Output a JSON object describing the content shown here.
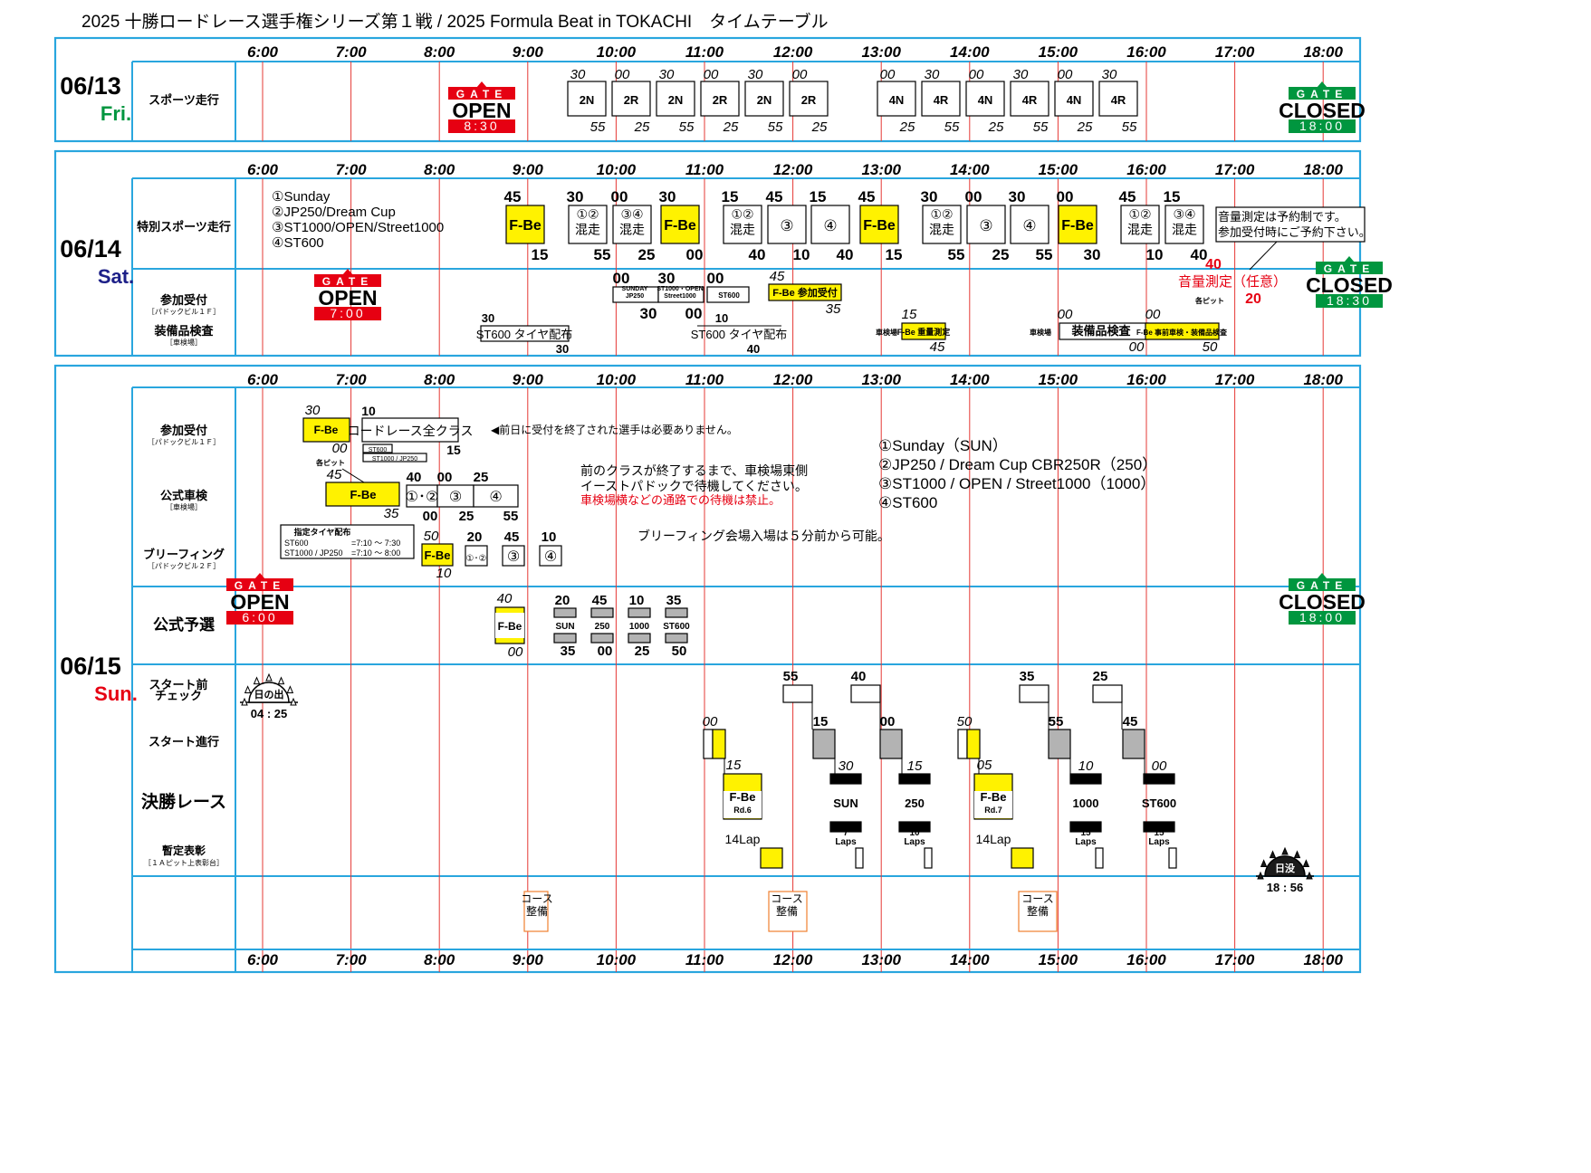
{
  "title": "2025 十勝ロードレース選手権シリーズ第１戦 / 2025 Formula Beat in TOKACHI　タイムテーブル",
  "colors": {
    "frame": "#29a6de",
    "hourline": "#e53935",
    "yellow": "#fff200",
    "gray": "#b3b3b3",
    "gate_open": "#e60012",
    "gate_closed": "#00963f",
    "red_text": "#e60012"
  },
  "hours": [
    "6:00",
    "7:00",
    "8:00",
    "9:00",
    "10:00",
    "11:00",
    "12:00",
    "13:00",
    "14:00",
    "15:00",
    "16:00",
    "17:00",
    "18:00"
  ],
  "gate": {
    "word": "GATE",
    "open": "OPEN",
    "closed": "CLOSED"
  },
  "days": [
    {
      "date": "06/13",
      "dow": "Fri.",
      "dow_color": "#00963f"
    },
    {
      "date": "06/14",
      "dow": "Sat.",
      "dow_color": "#1d2088"
    },
    {
      "date": "06/15",
      "dow": "Sun.",
      "dow_color": "#e60012"
    }
  ],
  "fri": {
    "row_label": "スポーツ走行",
    "gate_open_time": "8:30",
    "gate_closed_time": "18:00",
    "sessions": [
      {
        "label": "2N",
        "start": "30",
        "end": "55"
      },
      {
        "label": "2R",
        "start": "00",
        "end": "25"
      },
      {
        "label": "2N",
        "start": "30",
        "end": "55"
      },
      {
        "label": "2R",
        "start": "00",
        "end": "25"
      },
      {
        "label": "2N",
        "start": "30",
        "end": "55"
      },
      {
        "label": "2R",
        "start": "00",
        "end": "25"
      },
      {
        "label": "4N",
        "start": "00",
        "end": "25"
      },
      {
        "label": "4R",
        "start": "30",
        "end": "55"
      },
      {
        "label": "4N",
        "start": "00",
        "end": "25"
      },
      {
        "label": "4R",
        "start": "30",
        "end": "55"
      },
      {
        "label": "4N",
        "start": "00",
        "end": "25"
      },
      {
        "label": "4R",
        "start": "30",
        "end": "55"
      }
    ]
  },
  "sat": {
    "row1_label": "特別スポーツ走行",
    "row2_label_a": "参加受付",
    "row2_label_a_sub": "［パドックビル１Ｆ］",
    "row2_label_b": "装備品検査",
    "row2_label_b_sub": "［車検場］",
    "legend": [
      "①Sunday",
      "②JP250/Dream Cup",
      "③ST1000/OPEN/Street1000",
      "④ST600"
    ],
    "sessions": [
      {
        "label": "F-Be",
        "start": "45",
        "end": "15"
      },
      {
        "label": "①②\n混走",
        "start": "30",
        "end": "55"
      },
      {
        "label": "③④\n混走",
        "start": "00",
        "end": "25"
      },
      {
        "label": "F-Be",
        "start": "30",
        "end": "00"
      },
      {
        "label": "①②\n混走",
        "start": "15",
        "end": "40"
      },
      {
        "label": "③",
        "start": "45",
        "end": "10"
      },
      {
        "label": "④",
        "start": "15",
        "end": "40"
      },
      {
        "label": "F-Be",
        "start": "45",
        "end": "15"
      },
      {
        "label": "①②\n混走",
        "start": "30",
        "end": "55"
      },
      {
        "label": "③",
        "start": "00",
        "end": "25"
      },
      {
        "label": "④",
        "start": "30",
        "end": "55"
      },
      {
        "label": "F-Be",
        "start": "00",
        "end": "30"
      },
      {
        "label": "①②\n混走",
        "start": "45",
        "end": "10"
      },
      {
        "label": "③④\n混走",
        "start": "15",
        "end": "40"
      }
    ],
    "note1": "音量測定は予約制です。",
    "note2": "参加受付時にご予約下さい。",
    "gate_open_time": "7:00",
    "gate_closed_time": "18:30",
    "reception": [
      {
        "label": "SUNDAY\nJP250",
        "start": "00",
        "end": "30"
      },
      {
        "label": "ST1000・OPEN\nStreet1000",
        "start": "30",
        "end": "00"
      },
      {
        "label": "ST600",
        "start": "00",
        "end": ""
      }
    ],
    "fbe_reception": "F-Be 参加受付",
    "fbe_reception_start": "45",
    "fbe_reception_end": "35",
    "tire1": "ST600 タイヤ配布",
    "tire1_start": "30",
    "tire1_end": "30",
    "tire2": "ST600 タイヤ配布",
    "tire2_start": "10",
    "tire2_end": "40",
    "shakenjo": "車検場",
    "fbe_weight": "F-Be 重量測定",
    "fbe_weight_start": "15",
    "fbe_weight_end": "45",
    "equip_check": "装備品検査",
    "equip_start": "00",
    "equip_end": "00",
    "fbe_pre": "F-Be 事前車検・装備品検査",
    "fbe_pre_start": "00",
    "fbe_pre_end": "50",
    "sound": "音量測定（任意）",
    "sound_start": "40",
    "sound_end": "20",
    "each_pit": "各ピット"
  },
  "sun": {
    "label_reception": "参加受付",
    "label_reception_sub": "［パドックビル１Ｆ］",
    "label_scrutineering": "公式車検",
    "label_scrutineering_sub": "［車検場］",
    "label_briefing": "ブリーフィング",
    "label_briefing_sub": "［パドックビル２Ｆ］",
    "label_qualifying": "公式予選",
    "label_prestart": "スタート前\nチェック",
    "label_start": "スタート進行",
    "label_final": "決勝レース",
    "label_podium": "暫定表彰",
    "label_podium_sub": "［１Ａピット上表彰台］",
    "reception_fbe": "F-Be",
    "reception_fbe_start": "30",
    "reception_fbe_end": "00",
    "reception_all": "ロードレース全クラス",
    "reception_all_start": "10",
    "reception_all_end": "15",
    "reception_sub1": "ST600",
    "reception_sub2": "ST1000 / JP250",
    "reception_note": "◀前日に受付を終了された選手は必要ありません。",
    "each_pit": "各ピット",
    "scrut_fbe": "F-Be",
    "scrut_fbe_start": "45",
    "scrut_fbe_end": "35",
    "scrut_classes": [
      {
        "label": "①･②",
        "start": "40",
        "end": "00"
      },
      {
        "label": "③",
        "start": "00",
        "end": "25"
      },
      {
        "label": "④",
        "start": "25",
        "end": "55"
      }
    ],
    "scrut_note1": "前のクラスが終了するまで、車検場東側",
    "scrut_note2": "イーストパドックで待機してください。",
    "scrut_note3": "車検場横などの通路での待機は禁止。",
    "tire_title": "指定タイヤ配布",
    "tire_line1_a": "ST600",
    "tire_line1_b": "=7:10 ～ 7:30",
    "tire_line2_a": "ST1000 / JP250",
    "tire_line2_b": "=7:10 ～ 8:00",
    "brief_fbe": "F-Be",
    "brief_fbe_start": "50",
    "brief_fbe_end": "10",
    "brief_classes": [
      {
        "label": "①･②",
        "start": "20"
      },
      {
        "label": "③",
        "start": "45"
      },
      {
        "label": "④",
        "start": "10"
      }
    ],
    "brief_note": "ブリーフィング会場入場は５分前から可能。",
    "legend": [
      "①Sunday（SUN）",
      "②JP250 / Dream Cup CBR250R（250）",
      "③ST1000 / OPEN / Street1000（1000）",
      "④ST600"
    ],
    "gate_open_time": "6:00",
    "gate_closed_time": "18:00",
    "qual_fbe": "F-Be",
    "qual_fbe_start": "40",
    "qual_fbe_end": "00",
    "qualifying": [
      {
        "label": "SUN",
        "start": "20",
        "end": "35"
      },
      {
        "label": "250",
        "start": "45",
        "end": "00"
      },
      {
        "label": "1000",
        "start": "10",
        "end": "25"
      },
      {
        "label": "ST600",
        "start": "35",
        "end": "50"
      }
    ],
    "sunrise": "日の出",
    "sunrise_time": "04 : 25",
    "sunset": "日没",
    "sunset_time": "18 : 56",
    "races": [
      {
        "label": "F-Be",
        "sub": "Rd.6",
        "laps": "14Lap",
        "start_prog": "00",
        "race_start": "15"
      },
      {
        "label": "SUN",
        "sub": "",
        "laps": "7\nLaps",
        "pre": "55",
        "start_prog": "15",
        "race_start": "30"
      },
      {
        "label": "250",
        "sub": "",
        "laps": "10\nLaps",
        "pre": "40",
        "start_prog": "00",
        "race_start": "15"
      },
      {
        "label": "F-Be",
        "sub": "Rd.7",
        "laps": "14Lap",
        "start_prog": "50",
        "race_start": "05"
      },
      {
        "label": "1000",
        "sub": "",
        "laps": "15\nLaps",
        "pre": "35",
        "start_prog": "55",
        "race_start": "10"
      },
      {
        "label": "ST600",
        "sub": "",
        "laps": "15\nLaps",
        "pre": "25",
        "start_prog": "45",
        "race_start": "00"
      }
    ],
    "course_maint": "コース\n整備"
  }
}
